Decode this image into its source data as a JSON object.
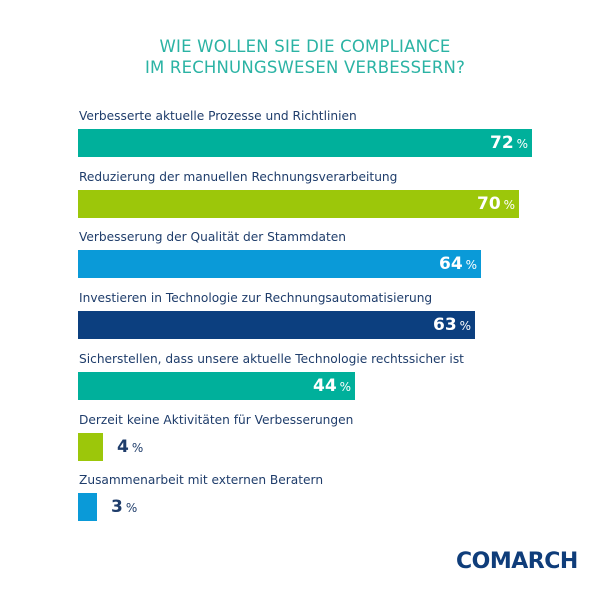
{
  "chart_data": {
    "type": "bar",
    "orientation": "horizontal",
    "title": "WIE WOLLEN SIE DIE COMPLIANCE IM RECHNUNGSWESEN VERBESSERN?",
    "title_lines": [
      "WIE WOLLEN SIE DIE COMPLIANCE",
      "IM RECHNUNGSWESEN VERBESSERN?"
    ],
    "categories": [
      "Verbesserte aktuelle Prozesse und Richtlinien",
      "Reduzierung der manuellen Rechnungsverarbeitung",
      "Verbesserung der Qualität der Stammdaten",
      "Investieren in Technologie zur Rechnungsautomatisierung",
      "Sicherstellen, dass unsere aktuelle Technologie rechtssicher ist",
      "Derzeit keine Aktivitäten für Verbesserungen",
      "Zusammenarbeit mit externen Beratern"
    ],
    "values": [
      72,
      70,
      64,
      63,
      44,
      4,
      3
    ],
    "colors": [
      "#00b09b",
      "#9cc70a",
      "#0a9ad8",
      "#0c3f7f",
      "#00b09b",
      "#9cc70a",
      "#0a9ad8"
    ],
    "unit": "%",
    "xlabel": "",
    "ylabel": "",
    "xlim": [
      0,
      100
    ],
    "grid": false,
    "legend": "none"
  },
  "brand": {
    "logo_text": "COMARCH",
    "title_color": "#2bb3a4",
    "label_color": "#1f3d6b",
    "logo_color": "#0f3d7a"
  }
}
